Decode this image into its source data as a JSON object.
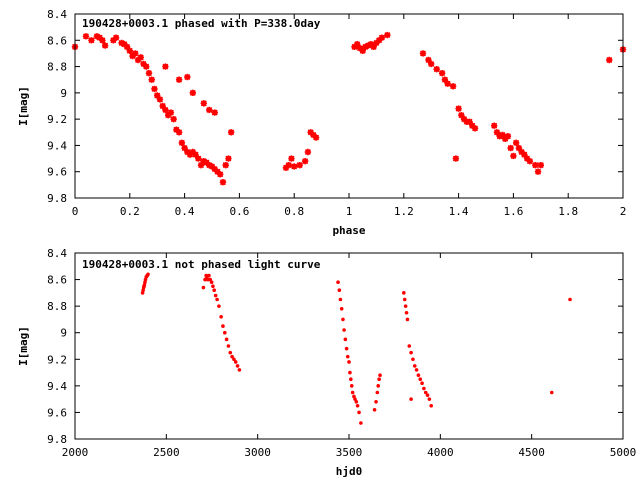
{
  "colors": {
    "points": "#ff0000",
    "frame": "#000000",
    "background": "#ffffff"
  },
  "chart_data": [
    {
      "type": "scatter",
      "title": "190428+0003.1 phased with P=338.0day",
      "xlabel": "phase",
      "ylabel": "I[mag]",
      "xlim": [
        0,
        2
      ],
      "ylim": [
        8.4,
        9.8
      ],
      "y_inverted": true,
      "grid": false,
      "marker": "filled-star",
      "x_ticks": [
        0,
        0.2,
        0.4,
        0.6,
        0.8,
        1,
        1.2,
        1.4,
        1.6,
        1.8,
        2
      ],
      "x_tick_labels": [
        "0",
        "0.2",
        "0.4",
        "0.6",
        "0.8",
        "1",
        "1.2",
        "1.4",
        "1.6",
        "1.8",
        "2"
      ],
      "y_ticks": [
        8.4,
        8.6,
        8.8,
        9.0,
        9.2,
        9.4,
        9.6,
        9.8
      ],
      "y_tick_labels": [
        "8.4",
        "8.6",
        "8.8",
        "9",
        "9.2",
        "9.4",
        "9.6",
        "9.8"
      ],
      "x": [
        0.0,
        0.04,
        0.06,
        0.08,
        0.09,
        0.1,
        0.11,
        0.14,
        0.15,
        0.17,
        0.18,
        0.19,
        0.2,
        0.21,
        0.22,
        0.23,
        0.24,
        0.25,
        0.26,
        0.27,
        0.28,
        0.29,
        0.3,
        0.31,
        0.32,
        0.33,
        0.34,
        0.35,
        0.36,
        0.37,
        0.38,
        0.39,
        0.4,
        0.41,
        0.42,
        0.43,
        0.44,
        0.45,
        0.46,
        0.47,
        0.48,
        0.49,
        0.5,
        0.51,
        0.52,
        0.53,
        0.54,
        0.55,
        0.56,
        0.57,
        0.33,
        0.38,
        0.41,
        0.43,
        0.47,
        0.49,
        0.51,
        0.77,
        0.78,
        0.79,
        0.8,
        0.82,
        0.84,
        0.85,
        0.86,
        0.87,
        0.88,
        1.02,
        1.03,
        1.04,
        1.05,
        1.06,
        1.07,
        1.08,
        1.09,
        1.1,
        1.11,
        1.12,
        1.14,
        1.27,
        1.29,
        1.3,
        1.32,
        1.34,
        1.35,
        1.36,
        1.38,
        1.39,
        1.4,
        1.41,
        1.42,
        1.43,
        1.44,
        1.45,
        1.46,
        1.53,
        1.54,
        1.55,
        1.56,
        1.57,
        1.58,
        1.59,
        1.6,
        1.61,
        1.62,
        1.63,
        1.64,
        1.65,
        1.66,
        1.68,
        1.69,
        1.7,
        1.95,
        2.0
      ],
      "y": [
        8.65,
        8.57,
        8.6,
        8.57,
        8.58,
        8.6,
        8.64,
        8.6,
        8.58,
        8.62,
        8.63,
        8.65,
        8.68,
        8.72,
        8.7,
        8.75,
        8.73,
        8.78,
        8.8,
        8.85,
        8.9,
        8.97,
        9.02,
        9.05,
        9.1,
        9.13,
        9.17,
        9.15,
        9.2,
        9.28,
        9.3,
        9.38,
        9.42,
        9.45,
        9.47,
        9.45,
        9.47,
        9.5,
        9.55,
        9.52,
        9.53,
        9.55,
        9.56,
        9.58,
        9.6,
        9.62,
        9.68,
        9.55,
        9.5,
        9.3,
        8.8,
        8.9,
        8.88,
        9.0,
        9.08,
        9.13,
        9.15,
        9.57,
        9.55,
        9.5,
        9.56,
        9.55,
        9.52,
        9.45,
        9.3,
        9.32,
        9.34,
        8.65,
        8.63,
        8.66,
        8.68,
        8.65,
        8.64,
        8.63,
        8.65,
        8.62,
        8.6,
        8.58,
        8.56,
        8.7,
        8.75,
        8.78,
        8.82,
        8.85,
        8.9,
        8.93,
        8.95,
        9.5,
        9.12,
        9.17,
        9.2,
        9.22,
        9.22,
        9.25,
        9.27,
        9.25,
        9.3,
        9.33,
        9.32,
        9.35,
        9.33,
        9.42,
        9.48,
        9.38,
        9.42,
        9.45,
        9.47,
        9.5,
        9.52,
        9.55,
        9.6,
        9.55,
        8.75,
        8.67
      ]
    },
    {
      "type": "scatter",
      "title": "190428+0003.1 not phased light curve",
      "xlabel": "hjd0",
      "ylabel": "I[mag]",
      "xlim": [
        2000,
        5000
      ],
      "ylim": [
        8.4,
        9.8
      ],
      "y_inverted": true,
      "grid": false,
      "marker": "small-dot",
      "x_ticks": [
        2000,
        2500,
        3000,
        3500,
        4000,
        4500,
        5000
      ],
      "x_tick_labels": [
        "2000",
        "2500",
        "3000",
        "3500",
        "4000",
        "4500",
        "5000"
      ],
      "y_ticks": [
        8.4,
        8.6,
        8.8,
        9.0,
        9.2,
        9.4,
        9.6,
        9.8
      ],
      "y_tick_labels": [
        "8.4",
        "8.6",
        "8.8",
        "9",
        "9.2",
        "9.4",
        "9.6",
        "9.8"
      ],
      "x": [
        2370,
        2373,
        2376,
        2378,
        2380,
        2383,
        2386,
        2390,
        2395,
        2400,
        2703,
        2712,
        2718,
        2722,
        2727,
        2733,
        2740,
        2748,
        2755,
        2762,
        2770,
        2778,
        2788,
        2800,
        2810,
        2820,
        2830,
        2840,
        2850,
        2860,
        2870,
        2880,
        2890,
        2900,
        3440,
        3447,
        3453,
        3460,
        3467,
        3473,
        3480,
        3487,
        3493,
        3500,
        3505,
        3510,
        3515,
        3520,
        3527,
        3533,
        3540,
        3547,
        3555,
        3565,
        3640,
        3648,
        3655,
        3660,
        3665,
        3670,
        3800,
        3805,
        3810,
        3815,
        3820,
        3830,
        3840,
        3850,
        3860,
        3870,
        3880,
        3890,
        3900,
        3910,
        3920,
        3930,
        3940,
        3950,
        3840,
        4610,
        4710
      ],
      "y": [
        8.7,
        8.68,
        8.66,
        8.65,
        8.64,
        8.62,
        8.6,
        8.58,
        8.57,
        8.56,
        8.66,
        8.6,
        8.57,
        8.58,
        8.6,
        8.57,
        8.6,
        8.62,
        8.65,
        8.68,
        8.72,
        8.75,
        8.8,
        8.88,
        8.95,
        9.0,
        9.05,
        9.1,
        9.15,
        9.18,
        9.2,
        9.22,
        9.25,
        9.28,
        8.62,
        8.68,
        8.75,
        8.82,
        8.9,
        8.98,
        9.05,
        9.12,
        9.18,
        9.22,
        9.3,
        9.35,
        9.4,
        9.45,
        9.48,
        9.5,
        9.52,
        9.55,
        9.6,
        9.68,
        9.58,
        9.52,
        9.45,
        9.4,
        9.35,
        9.32,
        8.7,
        8.75,
        8.8,
        8.85,
        8.9,
        9.1,
        9.15,
        9.2,
        9.25,
        9.28,
        9.32,
        9.35,
        9.38,
        9.42,
        9.45,
        9.47,
        9.5,
        9.55,
        9.5,
        9.45,
        8.75
      ]
    }
  ]
}
